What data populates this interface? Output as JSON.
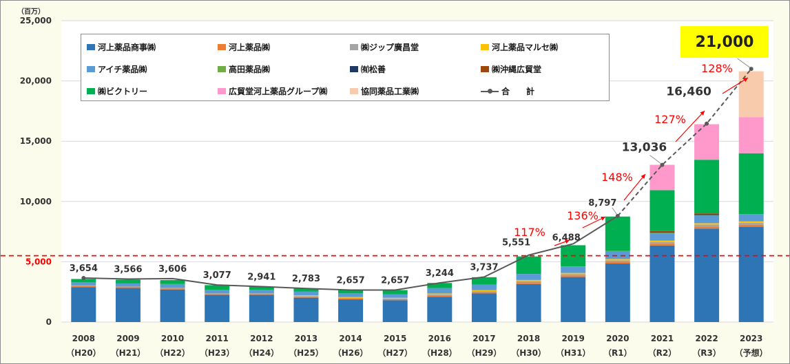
{
  "chart_data": {
    "type": "bar",
    "stacked": true,
    "unit": "（百万）",
    "ylim": [
      0,
      25000
    ],
    "yticks": [
      0,
      5000,
      10000,
      15000,
      20000,
      25000
    ],
    "ytick_labels": [
      "0",
      "5,000",
      "10,000",
      "15,000",
      "20,000",
      "25,000"
    ],
    "grid": true,
    "legend_position": "top-left",
    "reference_line": {
      "value": 5500,
      "color": "#ff0000",
      "style": "dashed"
    },
    "categories": [
      {
        "year": "2008",
        "era": "（H20）"
      },
      {
        "year": "2009",
        "era": "（H21）"
      },
      {
        "year": "2010",
        "era": "（H22）"
      },
      {
        "year": "2011",
        "era": "（H23）"
      },
      {
        "year": "2012",
        "era": "（H24）"
      },
      {
        "year": "2013",
        "era": "（H25）"
      },
      {
        "year": "2014",
        "era": "（H26）"
      },
      {
        "year": "2015",
        "era": "（H27）"
      },
      {
        "year": "2016",
        "era": "（H28）"
      },
      {
        "year": "2017",
        "era": "（H29）"
      },
      {
        "year": "2018",
        "era": "（H30）"
      },
      {
        "year": "2019",
        "era": "（H31）"
      },
      {
        "year": "2020",
        "era": "（R1）"
      },
      {
        "year": "2021",
        "era": "（R2）"
      },
      {
        "year": "2022",
        "era": "（R3）"
      },
      {
        "year": "2023",
        "era": "（予想）"
      }
    ],
    "series": [
      {
        "name": "河上薬品商事㈱",
        "color": "#2e75b6",
        "values": [
          2900,
          2820,
          2700,
          2250,
          2250,
          2020,
          1880,
          1810,
          2100,
          2370,
          3150,
          3730,
          4850,
          6350,
          7750,
          7900
        ]
      },
      {
        "name": "河上薬品㈱",
        "color": "#ed7d31",
        "values": [
          90,
          90,
          90,
          80,
          80,
          80,
          80,
          80,
          110,
          110,
          130,
          130,
          150,
          150,
          170,
          170
        ]
      },
      {
        "name": "㈱ジップ廣昌堂",
        "color": "#a5a5a5",
        "values": [
          60,
          60,
          60,
          60,
          60,
          60,
          60,
          60,
          80,
          80,
          110,
          110,
          120,
          140,
          160,
          160
        ]
      },
      {
        "name": "河上薬品マルセ㈱",
        "color": "#ffc000",
        "values": [
          0,
          0,
          0,
          0,
          0,
          60,
          60,
          60,
          80,
          80,
          100,
          100,
          110,
          110,
          120,
          120
        ]
      },
      {
        "name": "アイチ薬品㈱",
        "color": "#5b9bd5",
        "values": [
          240,
          230,
          300,
          290,
          290,
          300,
          300,
          300,
          450,
          460,
          500,
          500,
          620,
          600,
          620,
          600
        ]
      },
      {
        "name": "高田薬品㈱",
        "color": "#70ad47",
        "values": [
          0,
          0,
          0,
          0,
          0,
          0,
          0,
          0,
          0,
          0,
          0,
          50,
          50,
          50,
          50,
          0
        ]
      },
      {
        "name": "㈲松善",
        "color": "#203864",
        "values": [
          0,
          0,
          0,
          0,
          0,
          0,
          0,
          0,
          0,
          0,
          0,
          0,
          0,
          60,
          60,
          0
        ]
      },
      {
        "name": "㈱沖縄広貿堂",
        "color": "#9e480e",
        "values": [
          0,
          0,
          0,
          0,
          0,
          0,
          0,
          0,
          0,
          0,
          0,
          0,
          0,
          80,
          80,
          0
        ]
      },
      {
        "name": "㈱ビクトリー",
        "color": "#00b050",
        "values": [
          280,
          310,
          330,
          380,
          260,
          260,
          280,
          340,
          420,
          620,
          1450,
          1750,
          2850,
          3400,
          4450,
          5050
        ]
      },
      {
        "name": "広貿堂河上薬品グループ㈱",
        "color": "#ff99cc",
        "values": [
          0,
          0,
          0,
          0,
          0,
          0,
          0,
          0,
          0,
          0,
          0,
          0,
          0,
          2100,
          2950,
          3000
        ]
      },
      {
        "name": "協同薬品工業㈱",
        "color": "#f8cbad",
        "values": [
          0,
          0,
          0,
          0,
          0,
          0,
          0,
          0,
          0,
          0,
          0,
          0,
          0,
          0,
          0,
          3800
        ]
      }
    ],
    "total_series": {
      "name": "合　　計",
      "color": "#595959",
      "values": [
        3654,
        3566,
        3606,
        3077,
        2941,
        2783,
        2657,
        2657,
        3244,
        3737,
        5551,
        6488,
        8797,
        13036,
        16460,
        21000
      ],
      "labels": [
        "3,654",
        "3,566",
        "3,606",
        "3,077",
        "2,941",
        "2,783",
        "2,657",
        "2,657",
        "3,244",
        "3,737",
        "5,551",
        "6,488",
        "8,797",
        "13,036",
        "16,460",
        "21,000"
      ]
    },
    "growth_annotations": [
      {
        "label": "117%",
        "from_index": 10,
        "to_index": 11
      },
      {
        "label": "136%",
        "from_index": 11,
        "to_index": 12
      },
      {
        "label": "148%",
        "from_index": 12,
        "to_index": 13
      },
      {
        "label": "127%",
        "from_index": 13,
        "to_index": 14
      },
      {
        "label": "128%",
        "from_index": 14,
        "to_index": 15
      }
    ],
    "highlight_total": "21,000"
  }
}
